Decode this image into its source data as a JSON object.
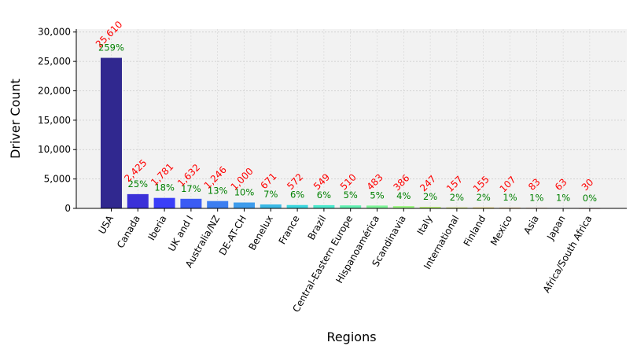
{
  "chart_data": {
    "type": "bar",
    "xlabel": "Regions",
    "ylabel": "Driver Count",
    "ylim": [
      0,
      30500
    ],
    "yticks": [
      0,
      5000,
      10000,
      15000,
      20000,
      25000,
      30000
    ],
    "ytick_labels": [
      "0",
      "5,000",
      "10,000",
      "15,000",
      "20,000",
      "25,000",
      "30,000"
    ],
    "grid": true,
    "categories": [
      "USA",
      "Canada",
      "Iberia",
      "UK and I",
      "Australia/NZ",
      "DE-AT-CH",
      "Benelux",
      "France",
      "Brazil",
      "Central-Eastern Europe",
      "Hispanoamérica",
      "Scandinavia",
      "Italy",
      "International",
      "Finland",
      "Mexico",
      "Asia",
      "Japan",
      "Africa/South Africa"
    ],
    "values": [
      25610,
      2425,
      1781,
      1632,
      1246,
      1000,
      671,
      572,
      549,
      510,
      483,
      386,
      247,
      157,
      155,
      107,
      83,
      63,
      30
    ],
    "value_labels": [
      "25,610",
      "2,425",
      "1,781",
      "1,632",
      "1,246",
      "1,000",
      "671",
      "572",
      "549",
      "510",
      "483",
      "386",
      "247",
      "157",
      "155",
      "107",
      "83",
      "63",
      "30"
    ],
    "percent_labels": [
      "259%",
      "25%",
      "18%",
      "17%",
      "13%",
      "10%",
      "7%",
      "6%",
      "6%",
      "5%",
      "5%",
      "4%",
      "2%",
      "2%",
      "2%",
      "1%",
      "1%",
      "1%",
      "0%"
    ],
    "colors": [
      "#30288f",
      "#3b30d8",
      "#3a3ef8",
      "#3b5cf4",
      "#3c7ef0",
      "#3e9cec",
      "#3bbae6",
      "#3ad7df",
      "#4be8cc",
      "#62f1b2",
      "#7ef699",
      "#9af880",
      "#b6f26a",
      "#cfe25a",
      "#e4cb4c",
      "#f2ac3e",
      "#f48832",
      "#ec5a24",
      "#d62a16"
    ],
    "value_label_color": "#ff0000",
    "percent_label_color": "#008000",
    "plot_background": "#f2f2f2"
  }
}
